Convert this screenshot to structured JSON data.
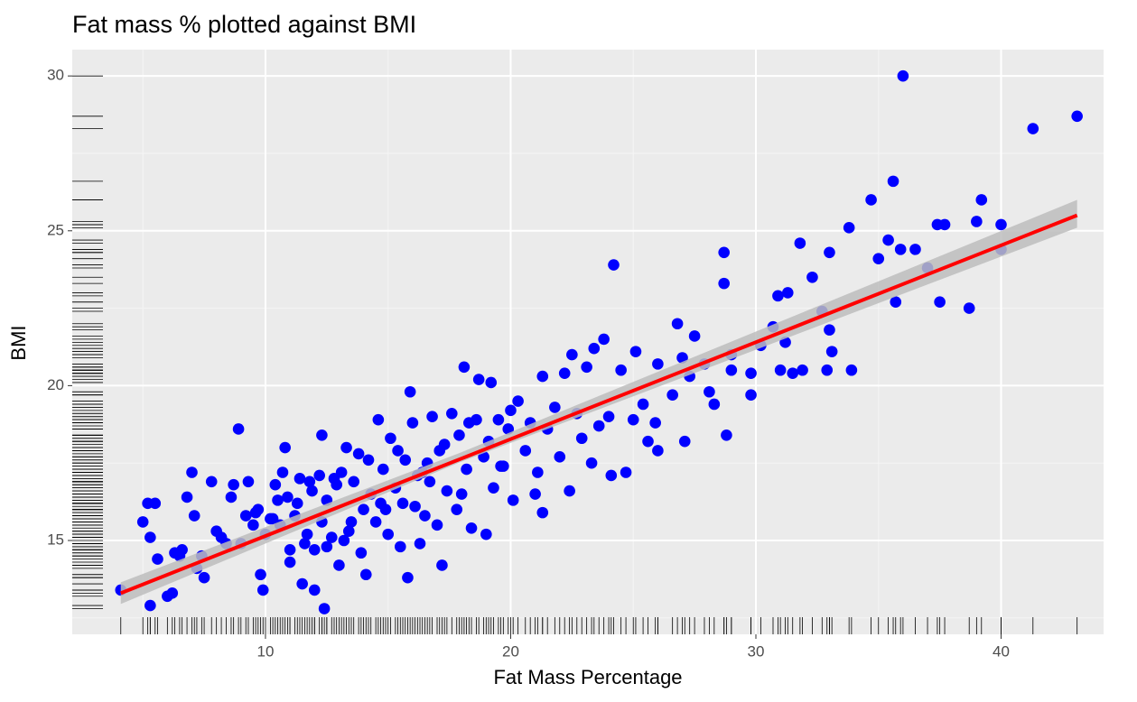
{
  "chart_data": {
    "type": "scatter",
    "title": "Fat mass % plotted against BMI",
    "xlabel": "Fat Mass Percentage",
    "ylabel": "BMI",
    "color": "#0000ff",
    "x": [
      4.1,
      5.3,
      5.2,
      5.5,
      5,
      5.3,
      5.6,
      6,
      6.2,
      6.3,
      6.5,
      6.8,
      7,
      7.1,
      7.2,
      7.5,
      7.4,
      7.8,
      8,
      8.2,
      8.6,
      8.7,
      8.9,
      9,
      9.3,
      9.5,
      9.7,
      9.8,
      9.9,
      10,
      10.3,
      10.4,
      10.5,
      10.6,
      10.7,
      10.8,
      11,
      11,
      11.2,
      11.3,
      11.4,
      11.5,
      11.7,
      11.9,
      12,
      12,
      12.2,
      12.3,
      12.3,
      12.4,
      12.5,
      12.5,
      12.7,
      12.9,
      13,
      13.1,
      13.3,
      13.5,
      13.6,
      13.8,
      13.9,
      14,
      14.1,
      14.3,
      14.5,
      14.6,
      14.8,
      15,
      15.1,
      15.3,
      15.5,
      15.6,
      15.7,
      15.8,
      15.9,
      16,
      16.1,
      16.2,
      16.3,
      16.5,
      16.6,
      16.8,
      17,
      17.1,
      17.2,
      17.4,
      17.6,
      17.8,
      17.9,
      18,
      18.1,
      18.2,
      18.4,
      18.6,
      18.7,
      18.9,
      19,
      19.1,
      19.2,
      19.3,
      19.5,
      19.7,
      19.9,
      20,
      20.1,
      20.3,
      20.6,
      20.8,
      21,
      21.1,
      21.3,
      21.3,
      21.5,
      21.8,
      22,
      22.2,
      22.4,
      22.5,
      22.7,
      22.9,
      23.1,
      23.3,
      23.4,
      23.6,
      23.8,
      24,
      24.1,
      24.2,
      24.5,
      24.7,
      25,
      25.1,
      25.4,
      25.6,
      25.9,
      26,
      26,
      26.6,
      26.8,
      27,
      27.1,
      27.3,
      27.5,
      27.9,
      28.1,
      28.3,
      28.7,
      28.7,
      28.8,
      29,
      29,
      29.8,
      29.8,
      30.2,
      30.7,
      30.9,
      31,
      31.2,
      31.3,
      31.5,
      31.8,
      31.9,
      32.3,
      32.7,
      32.9,
      33,
      33,
      33.1,
      33.9,
      33.8,
      34.7,
      35,
      35.4,
      35.6,
      35.7,
      35.9,
      36,
      36.5,
      37,
      37.4,
      37.5,
      37.7,
      38.7,
      39,
      39.2,
      40,
      40,
      41.3,
      43.1,
      9.2,
      10.9,
      11.6,
      12.8,
      13.4,
      14.2,
      14.9,
      15.4,
      16.4,
      17.3,
      6.6,
      8.4,
      9.6,
      10.2,
      11.8,
      13.2,
      14.7,
      16.7,
      18.3,
      19.6
    ],
    "values": [
      13.4,
      12.9,
      16.2,
      16.2,
      15.6,
      15.1,
      14.4,
      13.2,
      13.3,
      14.6,
      14.5,
      16.4,
      17.2,
      15.8,
      14.1,
      13.8,
      14.5,
      16.9,
      15.3,
      15.1,
      16.4,
      16.8,
      18.6,
      14.9,
      16.9,
      15.5,
      16,
      13.9,
      13.4,
      15.2,
      15.7,
      16.8,
      16.3,
      15.5,
      17.2,
      18,
      14.3,
      14.7,
      15.8,
      16.2,
      17,
      13.6,
      15.2,
      16.6,
      13.4,
      14.7,
      17.1,
      15.6,
      18.4,
      12.8,
      16.3,
      14.8,
      15.1,
      16.8,
      14.2,
      17.2,
      18,
      15.6,
      16.9,
      17.8,
      14.6,
      16,
      13.9,
      16.5,
      15.6,
      18.9,
      17.3,
      15.2,
      18.3,
      16.7,
      14.8,
      16.2,
      17.6,
      13.8,
      19.8,
      18.8,
      16.1,
      17.1,
      14.9,
      15.8,
      17.5,
      19,
      15.5,
      17.9,
      14.2,
      16.6,
      19.1,
      16,
      18.4,
      16.5,
      20.6,
      17.3,
      15.4,
      18.9,
      20.2,
      17.7,
      15.2,
      18.2,
      20.1,
      16.7,
      18.9,
      17.4,
      18.6,
      19.2,
      16.3,
      19.5,
      17.9,
      18.8,
      16.5,
      17.2,
      15.9,
      20.3,
      18.6,
      19.3,
      17.7,
      20.4,
      16.6,
      21,
      19.1,
      18.3,
      20.6,
      17.5,
      21.2,
      18.7,
      21.5,
      19,
      17.1,
      23.9,
      20.5,
      17.2,
      18.9,
      21.1,
      19.4,
      18.2,
      18.8,
      20.7,
      17.9,
      19.7,
      22,
      20.9,
      18.2,
      20.3,
      21.6,
      20.7,
      19.8,
      19.4,
      24.3,
      23.3,
      18.4,
      20.5,
      21,
      19.7,
      20.4,
      21.3,
      21.9,
      22.9,
      20.5,
      21.4,
      23,
      20.4,
      24.6,
      20.5,
      23.5,
      22.4,
      20.5,
      24.3,
      21.8,
      21.1,
      20.5,
      25.1,
      26,
      24.1,
      24.7,
      26.6,
      22.7,
      24.4,
      30,
      24.4,
      23.8,
      25.2,
      22.7,
      25.2,
      22.5,
      25.3,
      26,
      25.2,
      24.4,
      28.3,
      28.7,
      15.8,
      16.4,
      14.9,
      17,
      15.3,
      17.6,
      16,
      17.9,
      17.2,
      18.1,
      14.7,
      14.9,
      15.9,
      15.7,
      16.9,
      15,
      16.2,
      16.9,
      18.8,
      17.4
    ],
    "fit": {
      "color": "#ff0000",
      "x": [
        4.1,
        43.1
      ],
      "values": [
        13.3,
        25.5
      ]
    },
    "band": {
      "color": "#bdbdbd",
      "x": [
        4.1,
        18,
        43.1
      ],
      "lower": [
        12.95,
        17.55,
        25.1
      ],
      "upper": [
        13.65,
        17.85,
        26.0
      ]
    },
    "rug": true,
    "xlim": [
      2.12,
      44.18
    ],
    "ylim": [
      11.97,
      30.85
    ],
    "xticks": [
      10,
      20,
      30,
      40
    ],
    "yticks": [
      15,
      20,
      25,
      30
    ],
    "grid": true
  }
}
